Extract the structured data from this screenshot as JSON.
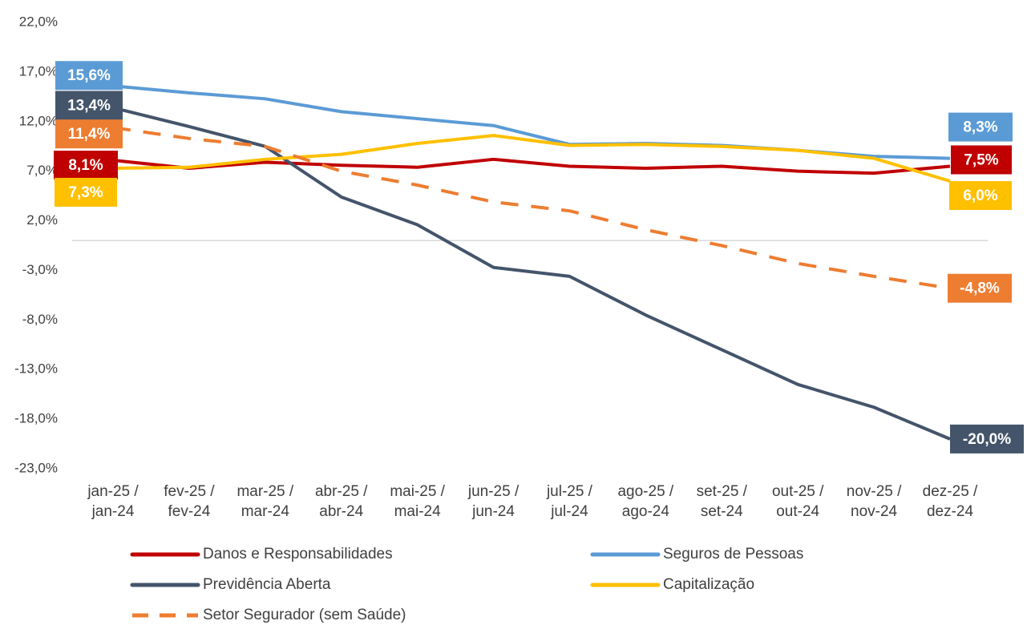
{
  "chart_data": {
    "type": "line",
    "categories": [
      [
        "jan-25 /",
        "jan-24"
      ],
      [
        "fev-25 /",
        "fev-24"
      ],
      [
        "mar-25 /",
        "mar-24"
      ],
      [
        "abr-25 /",
        "abr-24"
      ],
      [
        "mai-25 /",
        "mai-24"
      ],
      [
        "jun-25 /",
        "jun-24"
      ],
      [
        "jul-25 /",
        "jul-24"
      ],
      [
        "ago-25 /",
        "ago-24"
      ],
      [
        "set-25 /",
        "set-24"
      ],
      [
        "out-25 /",
        "out-24"
      ],
      [
        "nov-25 /",
        "nov-24"
      ],
      [
        "dez-25 /",
        "dez-24"
      ]
    ],
    "series": [
      {
        "name": "Danos e Responsabilidades",
        "color": "#C00000",
        "values": [
          8.1,
          7.3,
          7.9,
          7.6,
          7.4,
          8.2,
          7.5,
          7.3,
          7.5,
          7.0,
          6.8,
          7.5
        ],
        "value_labels": [
          "8,1%",
          null,
          null,
          null,
          null,
          null,
          null,
          null,
          null,
          null,
          null,
          "7,5%"
        ]
      },
      {
        "name": "Seguros de Pessoas",
        "color": "#5B9BD5",
        "values": [
          15.6,
          14.9,
          14.3,
          13.0,
          12.3,
          11.6,
          9.7,
          9.8,
          9.6,
          9.1,
          8.5,
          8.3
        ],
        "value_labels": [
          "15,6%",
          null,
          null,
          null,
          null,
          null,
          null,
          null,
          null,
          null,
          null,
          "8,3%"
        ]
      },
      {
        "name": "Previdência Aberta",
        "color": "#44546A",
        "values": [
          13.4,
          11.5,
          9.5,
          4.4,
          1.6,
          -2.7,
          -3.6,
          -7.5,
          -11.0,
          -14.5,
          -16.8,
          -20.0
        ],
        "value_labels": [
          "13,4%",
          null,
          null,
          null,
          null,
          null,
          null,
          null,
          null,
          null,
          null,
          "-20,0%"
        ]
      },
      {
        "name": "Capitalização",
        "color": "#FFC000",
        "values": [
          7.3,
          7.4,
          8.2,
          8.7,
          9.8,
          10.6,
          9.6,
          9.7,
          9.5,
          9.1,
          8.3,
          6.0
        ],
        "value_labels": [
          "7,3%",
          null,
          null,
          null,
          null,
          null,
          null,
          null,
          null,
          null,
          null,
          "6,0%"
        ]
      },
      {
        "name": "Setor Segurador (sem Saúde)",
        "color": "#ED7D31",
        "dashed": true,
        "values": [
          11.4,
          10.3,
          9.5,
          7.0,
          5.6,
          3.9,
          3.0,
          1.1,
          -0.5,
          -2.3,
          -3.6,
          -4.8
        ],
        "value_labels": [
          "11,4%",
          null,
          null,
          null,
          null,
          null,
          null,
          null,
          null,
          null,
          null,
          "-4,8%"
        ]
      }
    ],
    "ylim": [
      -23,
      22
    ],
    "yticks": [
      {
        "value": 22,
        "label": "22,0%"
      },
      {
        "value": 17,
        "label": "17,0%"
      },
      {
        "value": 12,
        "label": "12,0%"
      },
      {
        "value": 7,
        "label": "7,0%"
      },
      {
        "value": 2,
        "label": "2,0%"
      },
      {
        "value": -3,
        "label": "-3,0%"
      },
      {
        "value": -8,
        "label": "-8,0%"
      },
      {
        "value": -13,
        "label": "-13,0%"
      },
      {
        "value": -18,
        "label": "-18,0%"
      },
      {
        "value": -23,
        "label": "-23,0%"
      }
    ],
    "grid": false,
    "legend": "bottom"
  }
}
